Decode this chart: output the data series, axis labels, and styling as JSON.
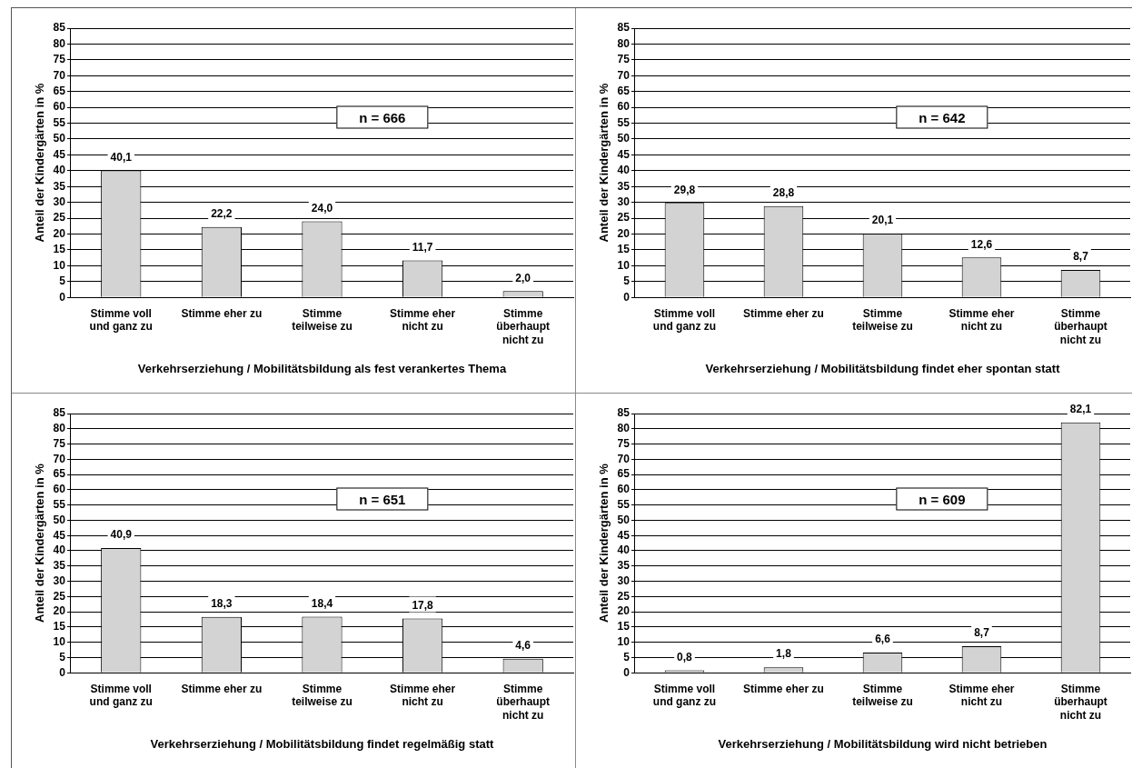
{
  "chart_data": [
    {
      "type": "bar",
      "xlabel": "Verkehrserziehung / Mobilitätsbildung als fest verankertes Thema",
      "ylabel": "Anteil der Kindergärten in %",
      "categories": [
        "Stimme voll und ganz zu",
        "Stimme eher zu",
        "Stimme teilweise zu",
        "Stimme eher nicht zu",
        "Stimme überhaupt nicht zu"
      ],
      "values": [
        40.1,
        22.2,
        24.0,
        11.7,
        2.0
      ],
      "value_labels": [
        "40,1",
        "22,2",
        "24,0",
        "11,7",
        "2,0"
      ],
      "color": "#d3d3d3",
      "ylim": [
        0,
        85
      ],
      "yticks": [
        0,
        5,
        10,
        15,
        20,
        25,
        30,
        35,
        40,
        45,
        50,
        55,
        60,
        65,
        70,
        75,
        80,
        85
      ],
      "grid": "y",
      "annotations": [
        "n = 666"
      ]
    },
    {
      "type": "bar",
      "xlabel": "Verkehrserziehung / Mobilitätsbildung findet eher spontan statt",
      "ylabel": "Anteil der Kindergärten in %",
      "categories": [
        "Stimme voll und ganz zu",
        "Stimme eher zu",
        "Stimme teilweise zu",
        "Stimme eher nicht zu",
        "Stimme überhaupt nicht zu"
      ],
      "values": [
        29.8,
        28.8,
        20.1,
        12.6,
        8.7
      ],
      "value_labels": [
        "29,8",
        "28,8",
        "20,1",
        "12,6",
        "8,7"
      ],
      "color": "#d3d3d3",
      "ylim": [
        0,
        85
      ],
      "yticks": [
        0,
        5,
        10,
        15,
        20,
        25,
        30,
        35,
        40,
        45,
        50,
        55,
        60,
        65,
        70,
        75,
        80,
        85
      ],
      "grid": "y",
      "annotations": [
        "n = 642"
      ]
    },
    {
      "type": "bar",
      "xlabel": "Verkehrserziehung / Mobilitätsbildung findet regelmäßig statt",
      "ylabel": "Anteil der Kindergärten in %",
      "categories": [
        "Stimme voll und ganz zu",
        "Stimme eher zu",
        "Stimme teilweise zu",
        "Stimme eher nicht zu",
        "Stimme überhaupt nicht zu"
      ],
      "values": [
        40.9,
        18.3,
        18.4,
        17.8,
        4.6
      ],
      "value_labels": [
        "40,9",
        "18,3",
        "18,4",
        "17,8",
        "4,6"
      ],
      "color": "#d3d3d3",
      "ylim": [
        0,
        85
      ],
      "yticks": [
        0,
        5,
        10,
        15,
        20,
        25,
        30,
        35,
        40,
        45,
        50,
        55,
        60,
        65,
        70,
        75,
        80,
        85
      ],
      "grid": "y",
      "annotations": [
        "n = 651"
      ]
    },
    {
      "type": "bar",
      "xlabel": "Verkehrserziehung / Mobilitätsbildung wird nicht betrieben",
      "ylabel": "Anteil der Kindergärten in %",
      "categories": [
        "Stimme voll und ganz zu",
        "Stimme eher zu",
        "Stimme teilweise zu",
        "Stimme eher nicht zu",
        "Stimme überhaupt nicht zu"
      ],
      "values": [
        0.8,
        1.8,
        6.6,
        8.7,
        82.1
      ],
      "value_labels": [
        "0,8",
        "1,8",
        "6,6",
        "8,7",
        "82,1"
      ],
      "color": "#d3d3d3",
      "ylim": [
        0,
        85
      ],
      "yticks": [
        0,
        5,
        10,
        15,
        20,
        25,
        30,
        35,
        40,
        45,
        50,
        55,
        60,
        65,
        70,
        75,
        80,
        85
      ],
      "grid": "y",
      "annotations": [
        "n = 609"
      ]
    }
  ]
}
